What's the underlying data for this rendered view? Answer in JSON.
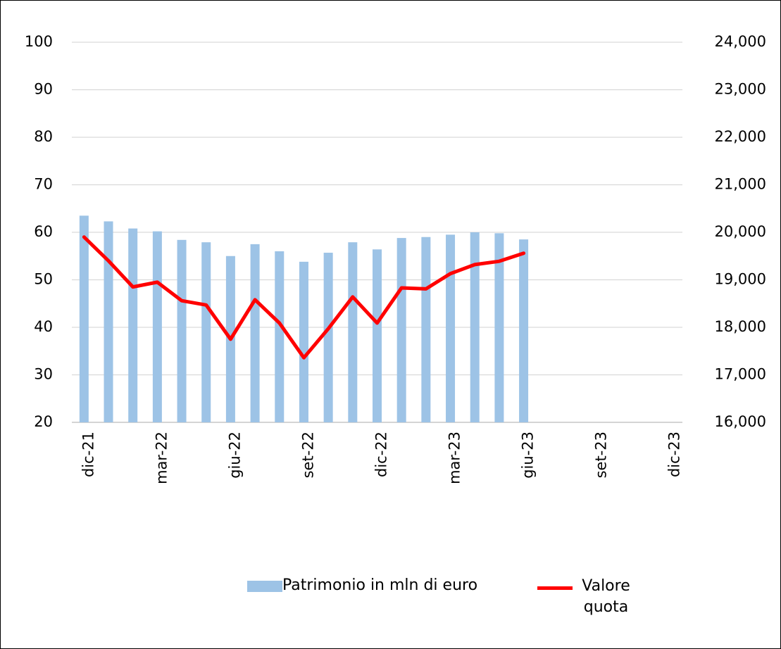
{
  "chart_data": {
    "type": "bar-line",
    "categories": [
      "dic-21",
      null,
      null,
      "mar-22",
      null,
      null,
      "giu-22",
      null,
      null,
      "set-22",
      null,
      null,
      "dic-22",
      null,
      null,
      "mar-23",
      null,
      null,
      "giu-23",
      null,
      null,
      "set-23",
      null,
      null,
      "dic-23"
    ],
    "series": [
      {
        "name": "Patrimonio in mln di euro",
        "type": "bar",
        "color": "#9dc3e6",
        "axis": "y",
        "values": [
          63.5,
          62.3,
          60.8,
          60.2,
          58.4,
          57.9,
          55.0,
          57.5,
          56.0,
          53.8,
          55.7,
          57.9,
          56.4,
          58.8,
          59.0,
          59.5,
          60.0,
          59.8,
          58.5,
          null,
          null,
          null,
          null,
          null,
          null
        ]
      },
      {
        "name": "Valore quota",
        "type": "line",
        "color": "#ff0000",
        "axis": "y2",
        "values": [
          19900,
          19400,
          18850,
          18950,
          18560,
          18470,
          17750,
          18580,
          18090,
          17360,
          17970,
          18640,
          18090,
          18830,
          18810,
          19130,
          19320,
          19390,
          19560,
          null,
          null,
          null,
          null,
          null,
          null
        ]
      }
    ],
    "ylim": [
      20,
      100
    ],
    "yticks": [
      20,
      30,
      40,
      50,
      60,
      70,
      80,
      90,
      100
    ],
    "y2lim": [
      16000,
      24000
    ],
    "y2ticks": [
      {
        "value": 16000,
        "label": "16,000"
      },
      {
        "value": 17000,
        "label": "17,000"
      },
      {
        "value": 18000,
        "label": "18,000"
      },
      {
        "value": 19000,
        "label": "19,000"
      },
      {
        "value": 20000,
        "label": "20,000"
      },
      {
        "value": 21000,
        "label": "21,000"
      },
      {
        "value": 22000,
        "label": "22,000"
      },
      {
        "value": 23000,
        "label": "23,000"
      },
      {
        "value": 24000,
        "label": "24,000"
      }
    ],
    "grid": true
  }
}
